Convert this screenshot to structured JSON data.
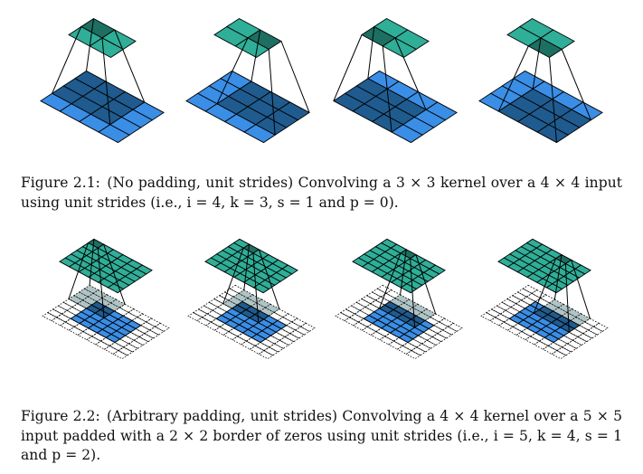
{
  "figures": [
    {
      "label": "Figure 2.1:",
      "text": "(No padding, unit strides) Convolving a 3 × 3 kernel over a 4 × 4 input using unit strides (i.e., i = 4, k = 3, s = 1 and p = 0).",
      "input_size": 4,
      "padding": 0,
      "kernel_size": 3,
      "output_size": 2,
      "stride": 1,
      "steps": [
        [
          0,
          0
        ],
        [
          0,
          1
        ],
        [
          1,
          0
        ],
        [
          1,
          1
        ]
      ]
    },
    {
      "label": "Figure 2.2:",
      "text": "(Arbitrary padding, unit strides) Convolving a 4 × 4 kernel over a 5 × 5 input padded with a 2 × 2 border of zeros using unit strides (i.e., i = 5, k = 4, s = 1 and p = 2).",
      "input_size": 5,
      "padding": 2,
      "kernel_size": 4,
      "output_size": 6,
      "stride": 1,
      "steps": [
        [
          0,
          0
        ],
        [
          0,
          1
        ],
        [
          0,
          2
        ],
        [
          0,
          3
        ]
      ]
    }
  ],
  "colors": {
    "input": "#3a8ee6",
    "input_kernel": "#1f5b8e",
    "output": "#2fae98",
    "output_active": "#1d6f61",
    "padding_active": "#b0c4c6",
    "padding_active_dark": "#3f6b77",
    "grid_line": "#000000"
  }
}
